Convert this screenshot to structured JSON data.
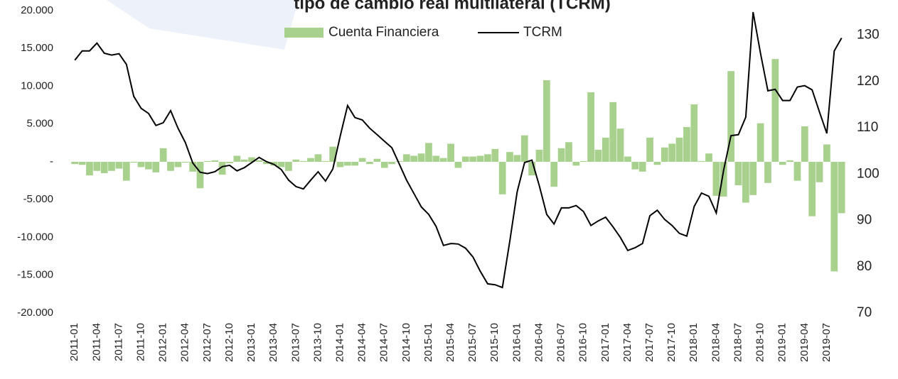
{
  "chart_data": {
    "type": "bar_line",
    "title": "tipo de cambio real multilateral (TCRM)",
    "categories": [
      "2011-01",
      null,
      null,
      "2011-04",
      null,
      null,
      "2011-07",
      null,
      null,
      "2011-10",
      null,
      null,
      "2012-01",
      null,
      null,
      "2012-04",
      null,
      null,
      "2012-07",
      null,
      null,
      "2012-10",
      null,
      null,
      "2013-01",
      null,
      null,
      "2013-04",
      null,
      null,
      "2013-07",
      null,
      null,
      "2013-10",
      null,
      null,
      "2014-01",
      null,
      null,
      "2014-04",
      null,
      null,
      "2014-07",
      null,
      null,
      "2014-10",
      null,
      null,
      "2015-01",
      null,
      null,
      "2015-04",
      null,
      null,
      "2015-07",
      null,
      null,
      "2015-10",
      null,
      null,
      "2016-01",
      null,
      null,
      "2016-04",
      null,
      null,
      "2016-07",
      null,
      null,
      "2016-10",
      null,
      null,
      "2017-01",
      null,
      null,
      "2017-04",
      null,
      null,
      "2017-07",
      null,
      null,
      "2017-10",
      null,
      null,
      "2018-01",
      null,
      null,
      "2018-04",
      null,
      null,
      "2018-07",
      null,
      null,
      "2018-10",
      null,
      null,
      "2019-01",
      null,
      null,
      "2019-04",
      null,
      null,
      "2019-07",
      null,
      null
    ],
    "series": [
      {
        "name": "Cuenta Financiera",
        "type": "bar",
        "color": "#a9d18e",
        "values": [
          -300,
          -400,
          -1800,
          -1200,
          -1500,
          -1200,
          -900,
          -2500,
          -100,
          -700,
          -1000,
          -1400,
          1800,
          -1200,
          -700,
          -100,
          -1300,
          -3500,
          100,
          200,
          -1700,
          -200,
          800,
          300,
          600,
          200,
          -300,
          -500,
          -700,
          -1200,
          300,
          100,
          500,
          1000,
          100,
          2000,
          -700,
          -500,
          -500,
          500,
          -300,
          400,
          -800,
          -300,
          100,
          1000,
          800,
          1100,
          2500,
          800,
          500,
          2400,
          -800,
          700,
          700,
          800,
          1000,
          1700,
          -4300,
          1300,
          900,
          3500,
          -1800,
          1600,
          10800,
          -3300,
          1800,
          2600,
          -500,
          100,
          9200,
          1600,
          3200,
          7900,
          4400,
          700,
          -1000,
          -1300,
          3200,
          -400,
          1900,
          2400,
          3200,
          4600,
          7600,
          100,
          1100,
          -4500,
          -4600,
          12000,
          -3100,
          -5400,
          -4400,
          5100,
          -2800,
          13600,
          -400,
          200,
          -2500,
          4700,
          -7200,
          -2700,
          2300,
          -14500,
          -6800
        ]
      },
      {
        "name": "TCRM",
        "type": "line",
        "axis": "y2",
        "color": "#000000",
        "values": [
          124.6,
          126.6,
          126.6,
          128.3,
          126.1,
          125.7,
          126,
          123.7,
          116.8,
          114.2,
          113.1,
          110.5,
          111.1,
          113.7,
          109.9,
          106.8,
          102.4,
          100.4,
          100.1,
          100.5,
          101.6,
          101.9,
          100.7,
          101.4,
          102.5,
          103.6,
          102.7,
          102.1,
          101,
          98.7,
          97.3,
          96.8,
          98.7,
          100.5,
          98.5,
          101.1,
          108.2,
          114.8,
          112.2,
          111.7,
          109.9,
          108.5,
          107.1,
          105.7,
          102.2,
          98.7,
          95.8,
          92.9,
          91.3,
          88.7,
          84.6,
          85,
          84.9,
          84,
          82.1,
          79,
          76.3,
          76.1,
          75.5,
          85.5,
          96.2,
          102.5,
          103,
          97.5,
          91.3,
          89.2,
          92.7,
          92.7,
          93.2,
          91.9,
          88.9,
          89.9,
          90.7,
          88.6,
          86.3,
          83.5,
          84.1,
          85,
          91,
          92.2,
          90.2,
          88.9,
          87.2,
          86.6,
          93,
          95.9,
          95.2,
          91.6,
          100.8,
          108.3,
          108.5,
          112.3,
          135,
          126.1,
          118,
          118.3,
          115.9,
          115.9,
          118.8,
          119.1,
          118.2,
          113.4,
          108.8,
          126.6,
          129.4
        ]
      }
    ],
    "ylim": [
      -20000,
      20000
    ],
    "yticks": [
      {
        "value": -20000,
        "label": "-20.000"
      },
      {
        "value": -15000,
        "label": "-15.000"
      },
      {
        "value": -10000,
        "label": "-10.000"
      },
      {
        "value": -5000,
        "label": "-5.000"
      },
      {
        "value": 0,
        "label": "-"
      },
      {
        "value": 5000,
        "label": "5.000"
      },
      {
        "value": 10000,
        "label": "10.000"
      },
      {
        "value": 15000,
        "label": "15.000"
      },
      {
        "value": 20000,
        "label": "20.000"
      }
    ],
    "y2lim": [
      70,
      135.3
    ],
    "y2ticks": [
      70,
      80,
      90,
      100,
      110,
      120,
      130
    ],
    "legend": "top"
  }
}
